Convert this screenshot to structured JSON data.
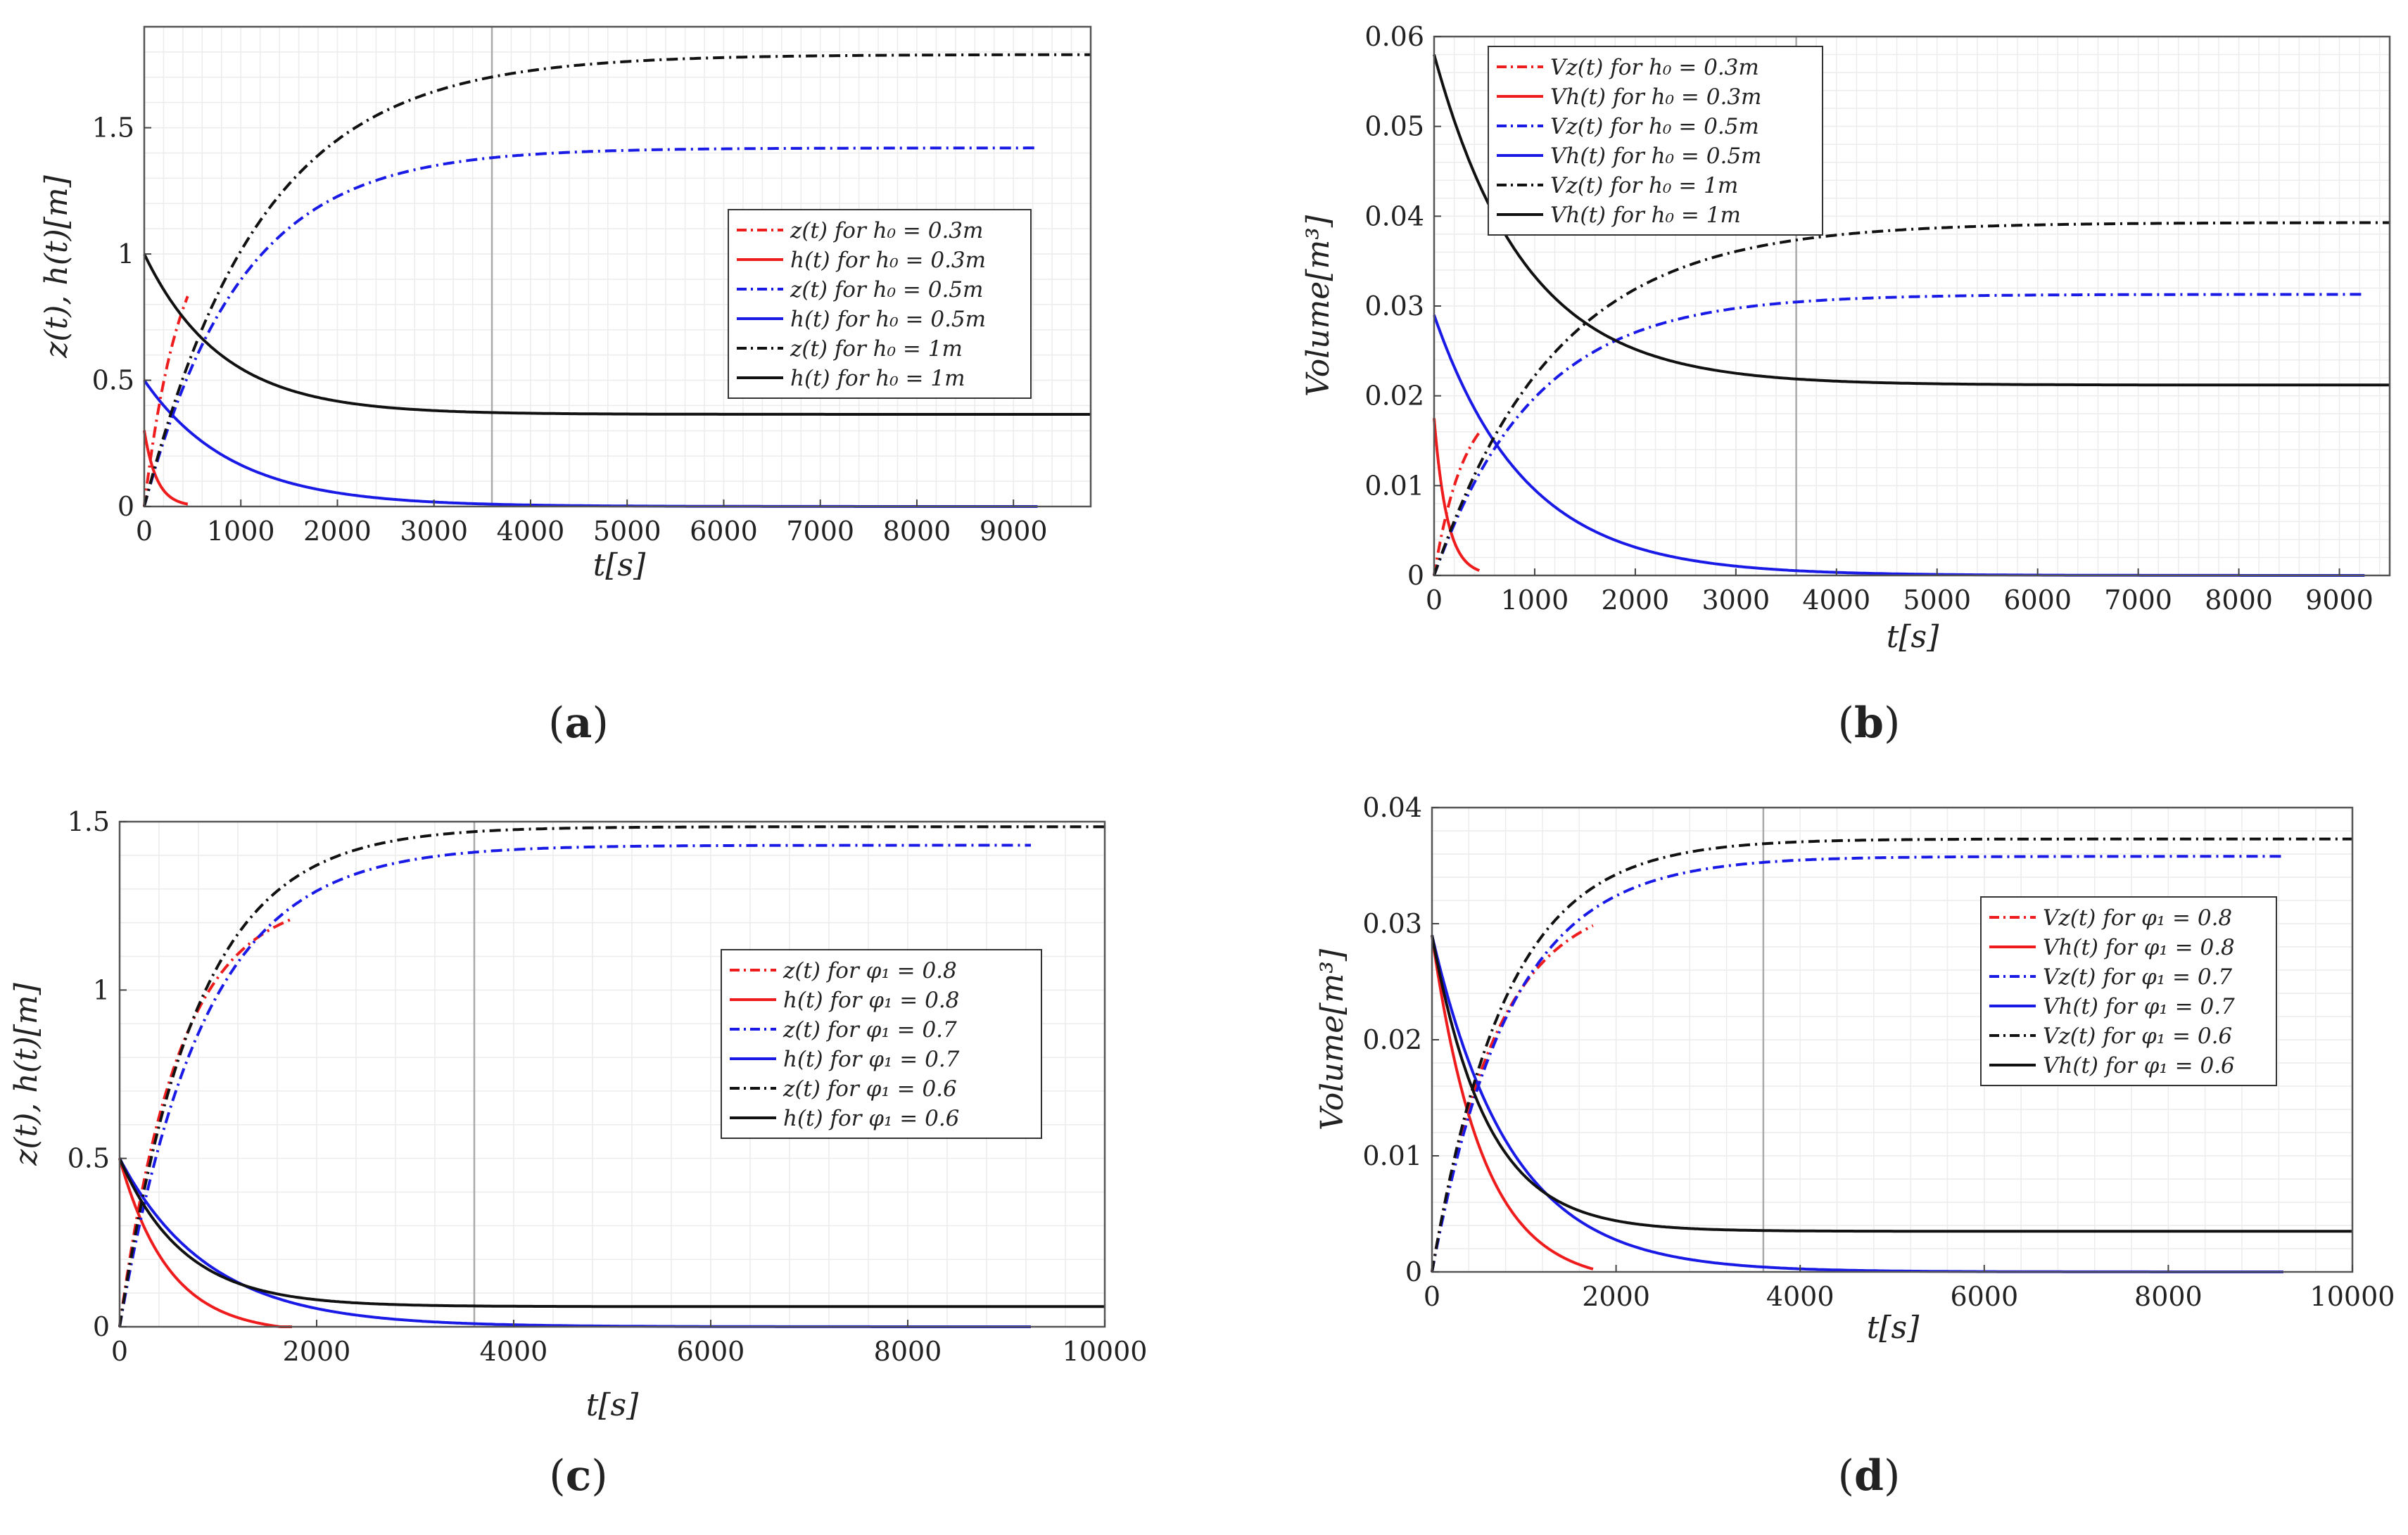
{
  "colors": {
    "red": "#ee1c1c",
    "blue": "#1a1ae6",
    "black": "#111111",
    "grid": "#ececec",
    "marker": "#aaaaaa"
  },
  "chart_data": [
    {
      "type": "line",
      "label": "(a)",
      "label_paren_open": "(",
      "label_letter": "a",
      "label_paren_close": ")",
      "xlabel": "t[s]",
      "ylabel": "z(t), h(t)[m]",
      "xlim": [
        0,
        9800
      ],
      "ylim": [
        0,
        1.9
      ],
      "xticks": [
        0,
        1000,
        2000,
        3000,
        4000,
        5000,
        6000,
        7000,
        8000,
        9000
      ],
      "yticks": [
        0,
        0.5,
        1,
        1.5
      ],
      "xtick_labels": [
        "0",
        "1000",
        "2000",
        "3000",
        "4000",
        "5000",
        "6000",
        "7000",
        "8000",
        "9000"
      ],
      "ytick_labels": [
        "0",
        "0.5",
        "1",
        "1.5"
      ],
      "vline": 3600,
      "legend_position": "center-right",
      "series": [
        {
          "name": "z(t)  for  h₀ = 0.3m",
          "color": "red",
          "dash": "dashdot",
          "curve": "zrise",
          "x0": 0,
          "x1": 450,
          "y0": 0,
          "yinf": 1.2,
          "tau": 380
        },
        {
          "name": "h(t)  for  h₀ = 0.3m",
          "color": "red",
          "dash": "solid",
          "curve": "hdecay",
          "x0": 0,
          "x1": 450,
          "y0": 0.3,
          "yinf": 0,
          "tau": 130
        },
        {
          "name": "z(t)  for  h₀ = 0.5m",
          "color": "blue",
          "dash": "dashdot",
          "curve": "zrise",
          "x0": 0,
          "x1": 9250,
          "y0": 0,
          "yinf": 1.42,
          "tau": 1000
        },
        {
          "name": "h(t)  for  h₀ = 0.5m",
          "color": "blue",
          "dash": "solid",
          "curve": "hdecay",
          "x0": 0,
          "x1": 9250,
          "y0": 0.5,
          "yinf": 0,
          "tau": 900
        },
        {
          "name": "z(t)  for  h₀ = 1m",
          "color": "black",
          "dash": "dashdot",
          "curve": "zrise",
          "x0": 0,
          "x1": 9800,
          "y0": 0,
          "yinf": 1.79,
          "tau": 1200
        },
        {
          "name": "h(t)  for  h₀ = 1m",
          "color": "black",
          "dash": "solid",
          "curve": "hdecay",
          "x0": 0,
          "x1": 9800,
          "y0": 1.0,
          "yinf": 0.365,
          "tau": 800
        }
      ]
    },
    {
      "type": "line",
      "label": "(b)",
      "label_paren_open": "(",
      "label_letter": "b",
      "label_paren_close": ")",
      "xlabel": "t[s]",
      "ylabel": "Volume[m³]",
      "xlim": [
        0,
        9500
      ],
      "ylim": [
        0,
        0.06
      ],
      "xticks": [
        0,
        1000,
        2000,
        3000,
        4000,
        5000,
        6000,
        7000,
        8000,
        9000
      ],
      "yticks": [
        0,
        0.01,
        0.02,
        0.03,
        0.04,
        0.05,
        0.06
      ],
      "xtick_labels": [
        "0",
        "1000",
        "2000",
        "3000",
        "4000",
        "5000",
        "6000",
        "7000",
        "8000",
        "9000"
      ],
      "ytick_labels": [
        "0",
        "0.01",
        "0.02",
        "0.03",
        "0.04",
        "0.05",
        "0.06"
      ],
      "vline": 3600,
      "legend_position": "top-left",
      "series": [
        {
          "name": "Vz(t)  for  h₀ = 0.3m",
          "color": "red",
          "dash": "dashdot",
          "curve": "zrise",
          "x0": 0,
          "x1": 450,
          "y0": 0,
          "yinf": 0.0205,
          "tau": 300
        },
        {
          "name": "Vh(t)  for  h₀ = 0.3m",
          "color": "red",
          "dash": "solid",
          "curve": "hdecay",
          "x0": 0,
          "x1": 450,
          "y0": 0.0175,
          "yinf": 0,
          "tau": 130
        },
        {
          "name": "Vz(t)  for  h₀ = 0.5m",
          "color": "blue",
          "dash": "dashdot",
          "curve": "zrise",
          "x0": 0,
          "x1": 9250,
          "y0": 0,
          "yinf": 0.0313,
          "tau": 1000
        },
        {
          "name": "Vh(t)  for  h₀ = 0.5m",
          "color": "blue",
          "dash": "solid",
          "curve": "hdecay",
          "x0": 0,
          "x1": 9250,
          "y0": 0.029,
          "yinf": 0,
          "tau": 900
        },
        {
          "name": "Vz(t)  for  h₀ = 1m",
          "color": "black",
          "dash": "dashdot",
          "curve": "zrise",
          "x0": 0,
          "x1": 9500,
          "y0": 0,
          "yinf": 0.0393,
          "tau": 1200
        },
        {
          "name": "Vh(t)  for  h₀ = 1m",
          "color": "black",
          "dash": "solid",
          "curve": "hdecay",
          "x0": 0,
          "x1": 9500,
          "y0": 0.058,
          "yinf": 0.0212,
          "tau": 900
        }
      ]
    },
    {
      "type": "line",
      "label": "(c)",
      "label_paren_open": "(",
      "label_letter": "c",
      "label_paren_close": ")",
      "xlabel": "t[s]",
      "ylabel": "z(t), h(t)[m]",
      "xlim": [
        0,
        10000
      ],
      "ylim": [
        0,
        1.5
      ],
      "xticks": [
        0,
        2000,
        4000,
        6000,
        8000,
        10000
      ],
      "yticks": [
        0,
        0.5,
        1,
        1.5
      ],
      "xtick_labels": [
        "0",
        "2000",
        "4000",
        "6000",
        "8000",
        "10000"
      ],
      "ytick_labels": [
        "0",
        "0.5",
        "1",
        "1.5"
      ],
      "vline": 3600,
      "legend_position": "center-right",
      "series": [
        {
          "name": "z(t)  for  φ₁ = 0.8",
          "color": "red",
          "dash": "dashdot",
          "curve": "zrise",
          "x0": 0,
          "x1": 1750,
          "y0": 0,
          "yinf": 1.28,
          "tau": 600
        },
        {
          "name": "h(t)  for  φ₁ = 0.8",
          "color": "red",
          "dash": "solid",
          "curve": "hdecay",
          "x0": 0,
          "x1": 1750,
          "y0": 0.5,
          "yinf": -0.02,
          "tau": 500
        },
        {
          "name": "z(t)  for  φ₁ = 0.7",
          "color": "blue",
          "dash": "dashdot",
          "curve": "zrise",
          "x0": 0,
          "x1": 9250,
          "y0": 0,
          "yinf": 1.43,
          "tau": 850
        },
        {
          "name": "h(t)  for  φ₁ = 0.7",
          "color": "blue",
          "dash": "solid",
          "curve": "hdecay",
          "x0": 0,
          "x1": 9250,
          "y0": 0.5,
          "yinf": 0,
          "tau": 900
        },
        {
          "name": "z(t)  for  φ₁ = 0.6",
          "color": "black",
          "dash": "dashdot",
          "curve": "zrise",
          "x0": 0,
          "x1": 10000,
          "y0": 0,
          "yinf": 1.485,
          "tau": 780
        },
        {
          "name": "h(t)  for  φ₁ = 0.6",
          "color": "black",
          "dash": "solid",
          "curve": "hdecay",
          "x0": 0,
          "x1": 10000,
          "y0": 0.5,
          "yinf": 0.06,
          "tau": 650
        }
      ]
    },
    {
      "type": "line",
      "label": "(d)",
      "label_paren_open": "(",
      "label_letter": "d",
      "label_paren_close": ")",
      "xlabel": "t[s]",
      "ylabel": "Volume[m³]",
      "xlim": [
        0,
        10000
      ],
      "ylim": [
        0,
        0.04
      ],
      "xticks": [
        0,
        2000,
        4000,
        6000,
        8000,
        10000
      ],
      "yticks": [
        0,
        0.01,
        0.02,
        0.03,
        0.04
      ],
      "xtick_labels": [
        "0",
        "2000",
        "4000",
        "6000",
        "8000",
        "10000"
      ],
      "ytick_labels": [
        "0",
        "0.01",
        "0.02",
        "0.03",
        "0.04"
      ],
      "vline": 3600,
      "legend_position": "center-right",
      "series": [
        {
          "name": "Vz(t)  for  φ₁ = 0.8",
          "color": "red",
          "dash": "dashdot",
          "curve": "zrise",
          "x0": 0,
          "x1": 1750,
          "y0": 0,
          "yinf": 0.0325,
          "tau": 700
        },
        {
          "name": "Vh(t)  for  φ₁ = 0.8",
          "color": "red",
          "dash": "solid",
          "curve": "hdecay",
          "x0": 0,
          "x1": 1750,
          "y0": 0.029,
          "yinf": -0.001,
          "tau": 550
        },
        {
          "name": "Vz(t)  for  φ₁ = 0.7",
          "color": "blue",
          "dash": "dashdot",
          "curve": "zrise",
          "x0": 0,
          "x1": 9250,
          "y0": 0,
          "yinf": 0.0358,
          "tau": 850
        },
        {
          "name": "Vh(t)  for  φ₁ = 0.7",
          "color": "blue",
          "dash": "solid",
          "curve": "hdecay",
          "x0": 0,
          "x1": 9250,
          "y0": 0.029,
          "yinf": 0,
          "tau": 850
        },
        {
          "name": "Vz(t)  for  φ₁ = 0.6",
          "color": "black",
          "dash": "dashdot",
          "curve": "zrise",
          "x0": 0,
          "x1": 10000,
          "y0": 0,
          "yinf": 0.0373,
          "tau": 800
        },
        {
          "name": "Vh(t)  for  φ₁ = 0.6",
          "color": "black",
          "dash": "solid",
          "curve": "hdecay",
          "x0": 0,
          "x1": 10000,
          "y0": 0.029,
          "yinf": 0.0035,
          "tau": 600
        }
      ]
    }
  ]
}
